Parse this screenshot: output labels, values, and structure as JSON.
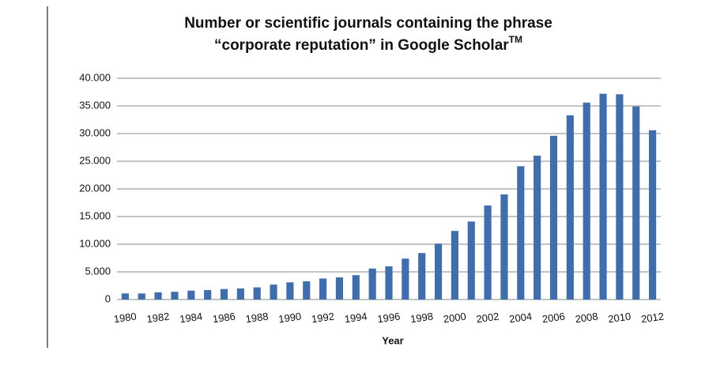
{
  "chart_data": {
    "type": "bar",
    "title": [
      "Number or scientific journals containing the phrase",
      "“corporate reputation” in Google Scholar"
    ],
    "title_superscript": "TM",
    "x_label": "Year",
    "categories": [
      "1980",
      null,
      "1982",
      null,
      "1984",
      null,
      "1986",
      null,
      "1988",
      null,
      "1990",
      null,
      "1992",
      null,
      "1994",
      null,
      "1996",
      null,
      "1998",
      null,
      "2000",
      null,
      "2002",
      null,
      "2004",
      null,
      "2006",
      null,
      "2008",
      null,
      "2010",
      null,
      "2012"
    ],
    "values": [
      1100,
      1100,
      1300,
      1400,
      1600,
      1700,
      1900,
      2000,
      2200,
      2700,
      3100,
      3300,
      3800,
      4000,
      4400,
      5600,
      6000,
      7400,
      8400,
      10100,
      12400,
      14100,
      17000,
      19000,
      24100,
      26000,
      29600,
      33300,
      35600,
      37200,
      37100,
      34900,
      30600
    ],
    "color": "#3f6eae",
    "ylim": [
      0,
      40000
    ],
    "yticks": [
      0,
      {
        "value": 5000,
        "label": "5.000"
      },
      {
        "value": 10000,
        "label": "10.000"
      },
      {
        "value": 15000,
        "label": "15.000"
      },
      {
        "value": 20000,
        "label": "20.000"
      },
      {
        "value": 25000,
        "label": "25.000"
      },
      {
        "value": 30000,
        "label": "30.000"
      },
      {
        "value": 35000,
        "label": "35.000"
      },
      {
        "value": 40000,
        "label": "40.000"
      }
    ],
    "grid": true
  }
}
